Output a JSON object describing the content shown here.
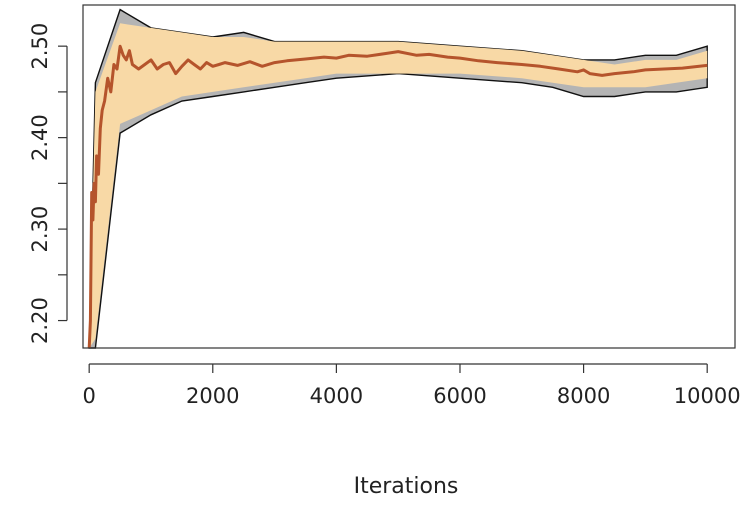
{
  "chart_data": {
    "type": "line",
    "title": "",
    "xlabel": "Iterations",
    "ylabel": "",
    "xlim": [
      -100,
      10450
    ],
    "ylim": [
      2.17,
      2.545
    ],
    "x_ticks": [
      0,
      2000,
      4000,
      6000,
      8000,
      10000
    ],
    "x_tick_labels": [
      "0",
      "2000",
      "4000",
      "6000",
      "8000",
      "10000"
    ],
    "y_ticks": [
      2.2,
      2.3,
      2.4,
      2.5
    ],
    "y_tick_labels": [
      "2.20",
      "2.30",
      "2.40",
      "2.50"
    ],
    "grid": false,
    "legend": "none",
    "colors": {
      "outer_band": "#b4b4b4",
      "inner_band": "#f8d9a6",
      "band_edge": "#111111",
      "mean_line": "#b5542c"
    },
    "series": [
      {
        "name": "",
        "role": "outer_band",
        "x": [
          0,
          100,
          500,
          1000,
          1500,
          2000,
          2500,
          3000,
          3500,
          4000,
          5000,
          6000,
          7000,
          7500,
          8000,
          8500,
          9000,
          9500,
          10000
        ],
        "upper": [
          2.17,
          2.46,
          2.54,
          2.52,
          2.515,
          2.51,
          2.515,
          2.505,
          2.505,
          2.505,
          2.505,
          2.5,
          2.495,
          2.49,
          2.485,
          2.485,
          2.49,
          2.49,
          2.5
        ],
        "lower": [
          2.17,
          2.17,
          2.405,
          2.425,
          2.44,
          2.445,
          2.45,
          2.455,
          2.46,
          2.465,
          2.47,
          2.465,
          2.46,
          2.455,
          2.445,
          2.445,
          2.45,
          2.45,
          2.455
        ]
      },
      {
        "name": "",
        "role": "inner_band",
        "x": [
          0,
          100,
          500,
          1000,
          1500,
          2000,
          2500,
          3000,
          3500,
          4000,
          5000,
          6000,
          7000,
          7500,
          8000,
          8500,
          9000,
          9500,
          10000
        ],
        "upper": [
          2.17,
          2.45,
          2.525,
          2.52,
          2.515,
          2.51,
          2.51,
          2.505,
          2.505,
          2.505,
          2.505,
          2.5,
          2.495,
          2.49,
          2.485,
          2.48,
          2.485,
          2.485,
          2.495
        ],
        "lower": [
          2.17,
          2.18,
          2.415,
          2.43,
          2.445,
          2.45,
          2.455,
          2.46,
          2.465,
          2.47,
          2.47,
          2.47,
          2.465,
          2.46,
          2.455,
          2.455,
          2.455,
          2.46,
          2.465
        ]
      },
      {
        "name": "",
        "role": "mean_line",
        "x": [
          0,
          20,
          40,
          60,
          80,
          100,
          120,
          150,
          180,
          210,
          250,
          300,
          350,
          400,
          450,
          500,
          550,
          600,
          650,
          700,
          800,
          900,
          1000,
          1100,
          1200,
          1300,
          1400,
          1500,
          1600,
          1700,
          1800,
          1900,
          2000,
          2100,
          2200,
          2400,
          2600,
          2800,
          3000,
          3200,
          3500,
          3800,
          4000,
          4200,
          4500,
          4800,
          5000,
          5300,
          5500,
          5800,
          6000,
          6300,
          6600,
          7000,
          7300,
          7600,
          7900,
          8000,
          8100,
          8300,
          8500,
          8800,
          9000,
          9300,
          9600,
          10000
        ],
        "y": [
          2.17,
          2.2,
          2.34,
          2.31,
          2.35,
          2.33,
          2.38,
          2.36,
          2.41,
          2.43,
          2.44,
          2.465,
          2.45,
          2.48,
          2.475,
          2.5,
          2.49,
          2.485,
          2.495,
          2.48,
          2.475,
          2.48,
          2.485,
          2.475,
          2.48,
          2.482,
          2.47,
          2.478,
          2.485,
          2.48,
          2.475,
          2.482,
          2.478,
          2.48,
          2.482,
          2.479,
          2.483,
          2.478,
          2.482,
          2.484,
          2.486,
          2.488,
          2.487,
          2.49,
          2.489,
          2.492,
          2.494,
          2.49,
          2.491,
          2.488,
          2.487,
          2.484,
          2.482,
          2.48,
          2.478,
          2.475,
          2.472,
          2.474,
          2.47,
          2.468,
          2.47,
          2.472,
          2.474,
          2.475,
          2.476,
          2.479
        ]
      }
    ]
  }
}
